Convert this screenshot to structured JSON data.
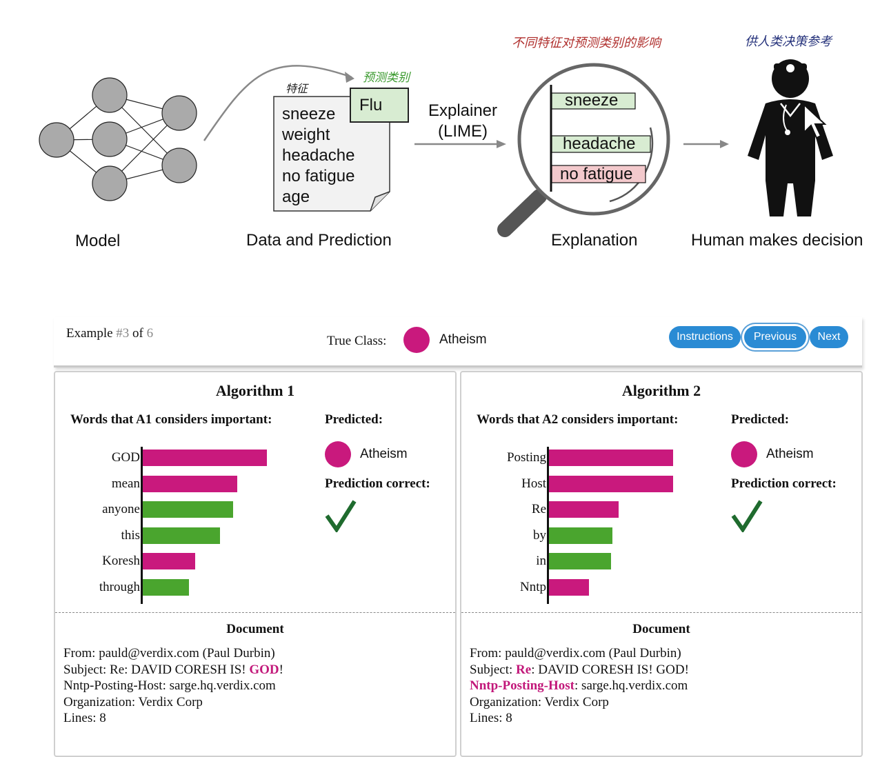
{
  "diagram": {
    "captions": {
      "model": "Model",
      "data_prediction": "Data and Prediction",
      "explanation": "Explanation",
      "human": "Human makes decision"
    },
    "features_label": "特征",
    "predicted_class_label": "预测类别",
    "prediction": "Flu",
    "features": [
      "sneeze",
      "weight",
      "headache",
      "no fatigue",
      "age"
    ],
    "explainer_label_line1": "Explainer",
    "explainer_label_line2": "(LIME)",
    "feature_influence_label": "不同特征对预测类别的影响",
    "decision_reference_label": "供人类决策参考",
    "explanation_features": [
      {
        "label": "sneeze",
        "effect": "supports"
      },
      {
        "label": "headache",
        "effect": "supports"
      },
      {
        "label": "no fatigue",
        "effect": "contradicts"
      }
    ]
  },
  "panel": {
    "example_prefix": "Example ",
    "example_current": "#3",
    "example_of": " of ",
    "example_total": "6",
    "true_class_label": "True Class:",
    "true_class": "Atheism",
    "buttons": {
      "instructions": "Instructions",
      "previous": "Previous",
      "next": "Next"
    },
    "algorithms": [
      {
        "title": "Algorithm 1",
        "words_heading": "Words that A1 considers important:",
        "predicted_label": "Predicted:",
        "predicted_class": "Atheism",
        "correct_label": "Prediction correct:",
        "correct": true,
        "document_label": "Document",
        "document": {
          "from": "From: pauld@verdix.com (Paul Durbin)",
          "subject_pre": "Subject: Re: DAVID CORESH IS! ",
          "subject_hl": "GOD",
          "subject_post": "!",
          "host_hl": "",
          "host_rest": "Nntp-Posting-Host: sarge.hq.verdix.com",
          "org": "Organization: Verdix Corp",
          "lines": "Lines: 8"
        }
      },
      {
        "title": "Algorithm 2",
        "words_heading": "Words that A2 considers important:",
        "predicted_label": "Predicted:",
        "predicted_class": "Atheism",
        "correct_label": "Prediction correct:",
        "correct": true,
        "document_label": "Document",
        "document": {
          "from": "From: pauld@verdix.com (Paul Durbin)",
          "subject_pre": "Subject: ",
          "subject_hl": "Re",
          "subject_post": ": DAVID CORESH IS! GOD!",
          "host_hl": "Nntp-Posting-Host",
          "host_rest": ": sarge.hq.verdix.com",
          "org": "Organization: Verdix Corp",
          "lines": "Lines: 8"
        }
      }
    ]
  },
  "chart_data": [
    {
      "type": "bar",
      "orientation": "horizontal",
      "title": "Words that A1 considers important:",
      "categories": [
        "GOD",
        "mean",
        "anyone",
        "this",
        "Koresh",
        "through"
      ],
      "values": [
        1.0,
        0.76,
        0.73,
        0.62,
        0.42,
        0.37
      ],
      "colors": [
        "#c9197d",
        "#c9197d",
        "#4aa52e",
        "#4aa52e",
        "#c9197d",
        "#4aa52e"
      ]
    },
    {
      "type": "bar",
      "orientation": "horizontal",
      "title": "Words that A2 considers important:",
      "categories": [
        "Posting",
        "Host",
        "Re",
        "by",
        "in",
        "Nntp"
      ],
      "values": [
        1.0,
        1.0,
        0.56,
        0.51,
        0.5,
        0.32
      ],
      "colors": [
        "#c9197d",
        "#c9197d",
        "#c9197d",
        "#4aa52e",
        "#4aa52e",
        "#c9197d"
      ]
    }
  ],
  "colors": {
    "atheism": "#c9197d",
    "supports": "#4aa52e",
    "button": "#2a8bd4",
    "check": "#1f6b2e",
    "lime_support": "#d8ecd2",
    "lime_contradict": "#f3c9cc"
  }
}
